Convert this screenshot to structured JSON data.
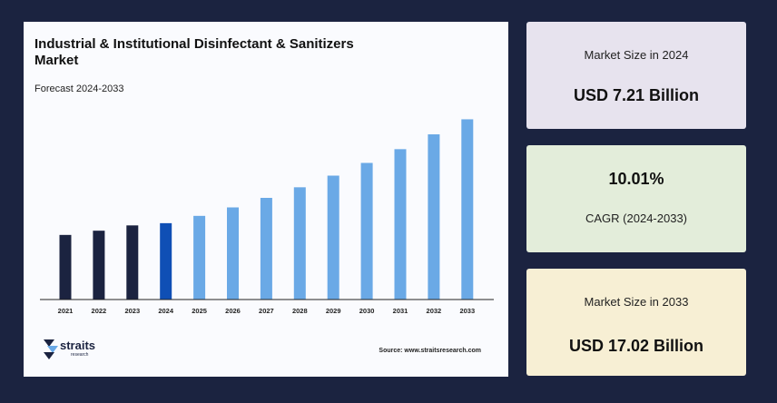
{
  "chart_data": {
    "type": "bar",
    "title": "Industrial & Institutional Disinfectant & Sanitizers Market",
    "subtitle": "Forecast 2024-2033",
    "categories": [
      "2021",
      "2022",
      "2023",
      "2024",
      "2025",
      "2026",
      "2027",
      "2028",
      "2029",
      "2030",
      "2031",
      "2032",
      "2033"
    ],
    "values": [
      6.1,
      6.5,
      7.0,
      7.21,
      7.9,
      8.7,
      9.6,
      10.6,
      11.7,
      12.9,
      14.2,
      15.6,
      17.02
    ],
    "bar_kinds": [
      "historical",
      "historical",
      "historical",
      "base",
      "forecast",
      "forecast",
      "forecast",
      "forecast",
      "forecast",
      "forecast",
      "forecast",
      "forecast",
      "forecast"
    ],
    "colors": {
      "historical": "#1b2340",
      "base": "#0f4fb5",
      "forecast": "#6aa9e6"
    },
    "ylim": [
      0,
      18
    ],
    "grid": false,
    "xlabel": "",
    "ylabel": ""
  },
  "brand": {
    "name": "straits",
    "sub": "research"
  },
  "source": "Source: www.straitsresearch.com",
  "stats": [
    {
      "label": "Market Size in 2024",
      "value": "USD 7.21 Billion"
    },
    {
      "value": "10.01%",
      "label": "CAGR (2024-2033)"
    },
    {
      "label": "Market Size in 2033",
      "value": "USD 17.02 Billion"
    }
  ]
}
